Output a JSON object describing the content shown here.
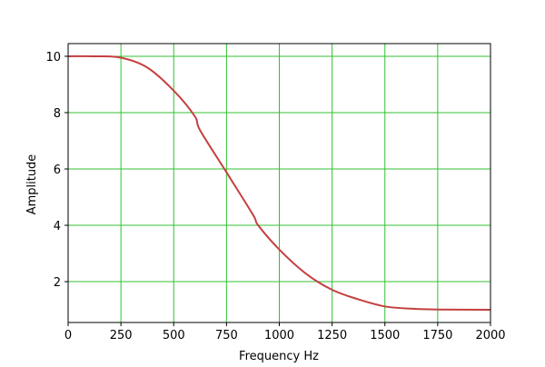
{
  "chart_data": {
    "type": "line",
    "title": "",
    "xlabel": "Frequency Hz",
    "ylabel": "Amplitude",
    "xlim": [
      0,
      2000
    ],
    "ylim": [
      0.55,
      10.45
    ],
    "xticks": [
      0,
      250,
      500,
      750,
      1000,
      1250,
      1500,
      1750,
      2000
    ],
    "yticks": [
      2,
      4,
      6,
      8,
      10
    ],
    "grid": true,
    "grid_color": "#33c033",
    "series": [
      {
        "color": "#c44040",
        "x": [
          0,
          125,
          250,
          375,
          500,
          600,
          625,
          750,
          875,
          900,
          1000,
          1125,
          1250,
          1375,
          1500,
          1625,
          1750,
          2000
        ],
        "y": [
          10.0,
          10.0,
          9.95,
          9.6,
          8.78,
          7.87,
          7.37,
          5.88,
          4.38,
          4.0,
          3.14,
          2.29,
          1.71,
          1.37,
          1.12,
          1.04,
          1.01,
          1.0
        ]
      }
    ]
  }
}
